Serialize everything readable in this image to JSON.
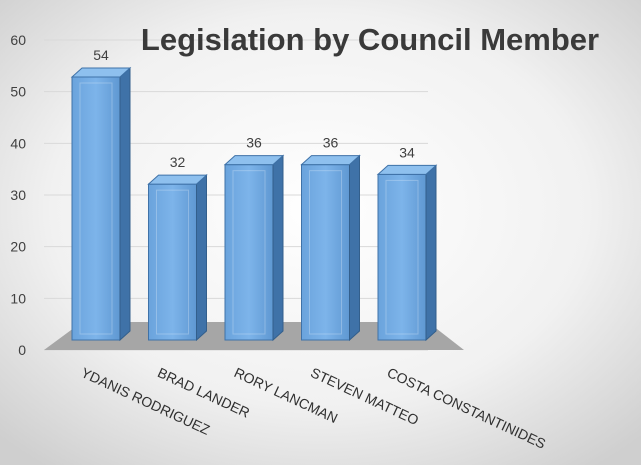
{
  "chart_data": {
    "type": "bar",
    "title": "Legislation by Council Member",
    "categories": [
      "YDANIS RODRIGUEZ",
      "BRAD LANDER",
      "RORY LANCMAN",
      "STEVEN MATTEO",
      "COSTA CONSTANTINIDES"
    ],
    "values": [
      54,
      32,
      36,
      36,
      34
    ],
    "ylim": [
      0,
      60
    ],
    "yticks": [
      "0",
      "10",
      "20",
      "30",
      "40",
      "50",
      "60"
    ],
    "xlabel": "",
    "ylabel": "",
    "grid": true,
    "legend": "none",
    "style": "3d-clustered-column",
    "colors": {
      "bar": "#6fa8e0",
      "bar_side": "#3f72a8",
      "bar_top": "#8ec0ee",
      "floor": "#a6a6a6"
    }
  }
}
